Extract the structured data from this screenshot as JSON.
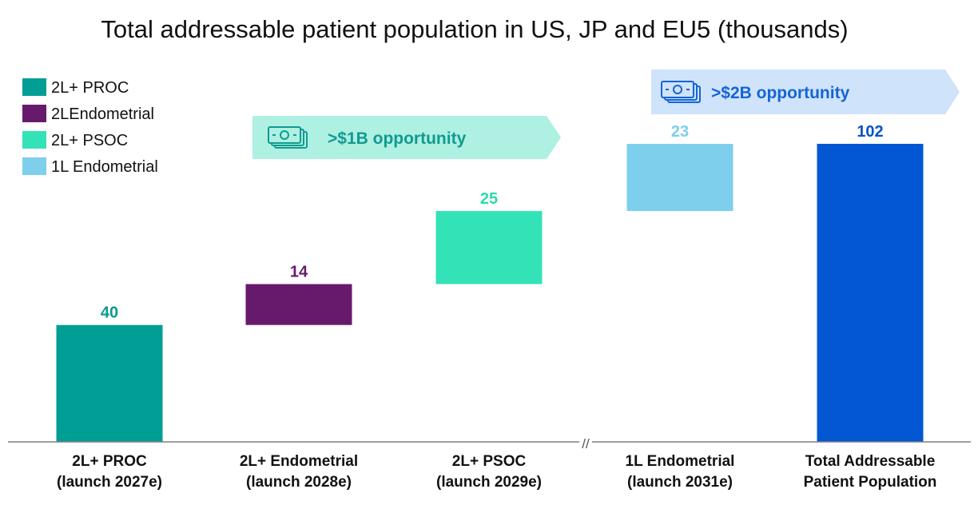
{
  "chart_data": {
    "type": "waterfall",
    "title": "Total addressable patient population in US, JP and EU5 (thousands)",
    "categories": [
      [
        "2L+ PROC",
        "(launch 2027e)"
      ],
      [
        "2L+ Endometrial",
        "(launch 2028e)"
      ],
      [
        "2L+ PSOC",
        "(launch 2029e)"
      ],
      [
        "1L Endometrial",
        "(launch 2031e)"
      ],
      [
        "Total Addressable",
        "Patient Population"
      ]
    ],
    "values": [
      40,
      14,
      25,
      23,
      102
    ],
    "value_labels": [
      "40",
      "14",
      "25",
      "23",
      "102"
    ],
    "is_total": [
      false,
      false,
      false,
      false,
      true
    ],
    "colors": [
      "#009e94",
      "#671a6b",
      "#33e2b6",
      "#7dcfec",
      "#0457d2"
    ],
    "label_colors": [
      "#0b9a8d",
      "#671a6b",
      "#2ed8ae",
      "#7dcfec",
      "#0453c8"
    ],
    "legend": {
      "position": "top-left",
      "entries": [
        {
          "label": "2L+ PROC",
          "color": "#009e94"
        },
        {
          "label": "2LEndometrial",
          "color": "#671a6b"
        },
        {
          "label": "2L+ PSOC",
          "color": "#33e2b6"
        },
        {
          "label": "1L Endometrial",
          "color": "#7dcfec"
        }
      ]
    },
    "annotations": [
      {
        "text": ">$1B opportunity",
        "icon": "money-icon",
        "fill": "#aef0e2",
        "text_color": "#119a90"
      },
      {
        "text": ">$2B opportunity",
        "icon": "money-icon",
        "fill": "#cfe3fb",
        "text_color": "#1565d3"
      }
    ],
    "axis_break_symbol": "//",
    "ylim": [
      0,
      102
    ],
    "grid": false
  }
}
